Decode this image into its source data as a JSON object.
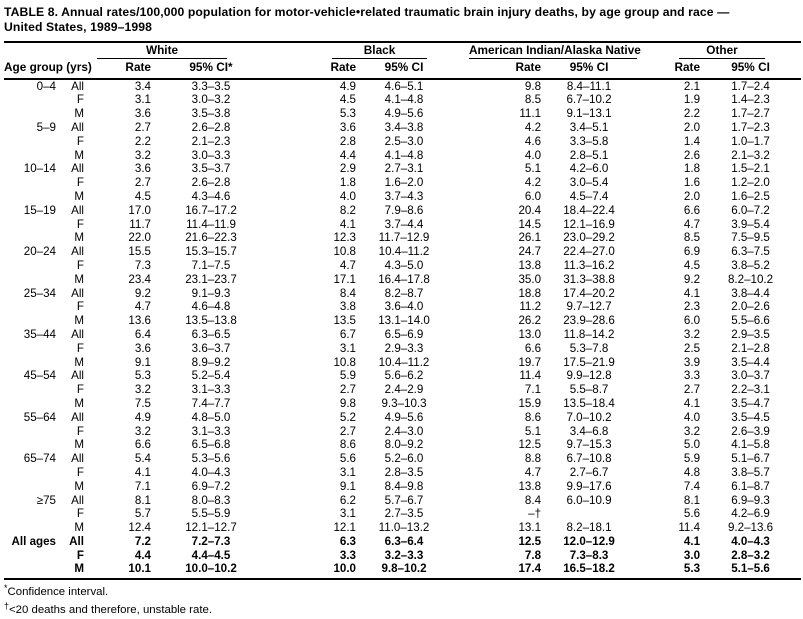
{
  "title": "TABLE 8. Annual rates/100,000 population for motor-vehicle•related traumatic brain injury deaths, by age group and race —\nUnited States, 1989–1998",
  "header": {
    "age_group_label": "Age group (yrs)",
    "groups": [
      {
        "name": "White",
        "rate_label": "Rate",
        "ci_label": "95% CI*"
      },
      {
        "name": "Black",
        "rate_label": "Rate",
        "ci_label": "95% CI"
      },
      {
        "name": "American Indian/Alaska Native",
        "rate_label": "Rate",
        "ci_label": "95% CI"
      },
      {
        "name": "Other",
        "rate_label": "Rate",
        "ci_label": "95% CI"
      }
    ]
  },
  "rows": [
    {
      "age": "0–4",
      "sex": "All",
      "bold": false,
      "w_rate": "3.4",
      "w_ci": "3.3–3.5",
      "b_rate": "4.9",
      "b_ci": "4.6–5.1",
      "ai_rate": "9.8",
      "ai_ci": "8.4–11.1",
      "o_rate": "2.1",
      "o_ci": "1.7–2.4"
    },
    {
      "age": "",
      "sex": "F",
      "bold": false,
      "w_rate": "3.1",
      "w_ci": "3.0–3.2",
      "b_rate": "4.5",
      "b_ci": "4.1–4.8",
      "ai_rate": "8.5",
      "ai_ci": "6.7–10.2",
      "o_rate": "1.9",
      "o_ci": "1.4–2.3"
    },
    {
      "age": "",
      "sex": "M",
      "bold": false,
      "w_rate": "3.6",
      "w_ci": "3.5–3.8",
      "b_rate": "5.3",
      "b_ci": "4.9–5.6",
      "ai_rate": "11.1",
      "ai_ci": "9.1–13.1",
      "o_rate": "2.2",
      "o_ci": "1.7–2.7"
    },
    {
      "age": "5–9",
      "sex": "All",
      "bold": false,
      "w_rate": "2.7",
      "w_ci": "2.6–2.8",
      "b_rate": "3.6",
      "b_ci": "3.4–3.8",
      "ai_rate": "4.2",
      "ai_ci": "3.4–5.1",
      "o_rate": "2.0",
      "o_ci": "1.7–2.3"
    },
    {
      "age": "",
      "sex": "F",
      "bold": false,
      "w_rate": "2.2",
      "w_ci": "2.1–2.3",
      "b_rate": "2.8",
      "b_ci": "2.5–3.0",
      "ai_rate": "4.6",
      "ai_ci": "3.3–5.8",
      "o_rate": "1.4",
      "o_ci": "1.0–1.7"
    },
    {
      "age": "",
      "sex": "M",
      "bold": false,
      "w_rate": "3.2",
      "w_ci": "3.0–3.3",
      "b_rate": "4.4",
      "b_ci": "4.1–4.8",
      "ai_rate": "4.0",
      "ai_ci": "2.8–5.1",
      "o_rate": "2.6",
      "o_ci": "2.1–3.2"
    },
    {
      "age": "10–14",
      "sex": "All",
      "bold": false,
      "w_rate": "3.6",
      "w_ci": "3.5–3.7",
      "b_rate": "2.9",
      "b_ci": "2.7–3.1",
      "ai_rate": "5.1",
      "ai_ci": "4.2–6.0",
      "o_rate": "1.8",
      "o_ci": "1.5–2.1"
    },
    {
      "age": "",
      "sex": "F",
      "bold": false,
      "w_rate": "2.7",
      "w_ci": "2.6–2.8",
      "b_rate": "1.8",
      "b_ci": "1.6–2.0",
      "ai_rate": "4.2",
      "ai_ci": "3.0–5.4",
      "o_rate": "1.6",
      "o_ci": "1.2–2.0"
    },
    {
      "age": "",
      "sex": "M",
      "bold": false,
      "w_rate": "4.5",
      "w_ci": "4.3–4.6",
      "b_rate": "4.0",
      "b_ci": "3.7–4.3",
      "ai_rate": "6.0",
      "ai_ci": "4.5–7.4",
      "o_rate": "2.0",
      "o_ci": "1.6–2.5"
    },
    {
      "age": "15–19",
      "sex": "All",
      "bold": false,
      "w_rate": "17.0",
      "w_ci": "16.7–17.2",
      "b_rate": "8.2",
      "b_ci": "7.9–8.6",
      "ai_rate": "20.4",
      "ai_ci": "18.4–22.4",
      "o_rate": "6.6",
      "o_ci": "6.0–7.2"
    },
    {
      "age": "",
      "sex": "F",
      "bold": false,
      "w_rate": "11.7",
      "w_ci": "11.4–11.9",
      "b_rate": "4.1",
      "b_ci": "3.7–4.4",
      "ai_rate": "14.5",
      "ai_ci": "12.1–16.9",
      "o_rate": "4.7",
      "o_ci": "3.9–5.4"
    },
    {
      "age": "",
      "sex": "M",
      "bold": false,
      "w_rate": "22.0",
      "w_ci": "21.6–22.3",
      "b_rate": "12.3",
      "b_ci": "11.7–12.9",
      "ai_rate": "26.1",
      "ai_ci": "23.0–29.2",
      "o_rate": "8.5",
      "o_ci": "7.5–9.5"
    },
    {
      "age": "20–24",
      "sex": "All",
      "bold": false,
      "w_rate": "15.5",
      "w_ci": "15.3–15.7",
      "b_rate": "10.8",
      "b_ci": "10.4–11.2",
      "ai_rate": "24.7",
      "ai_ci": "22.4–27.0",
      "o_rate": "6.9",
      "o_ci": "6.3–7.5"
    },
    {
      "age": "",
      "sex": "F",
      "bold": false,
      "w_rate": "7.3",
      "w_ci": "7.1–7.5",
      "b_rate": "4.7",
      "b_ci": "4.3–5.0",
      "ai_rate": "13.8",
      "ai_ci": "11.3–16.2",
      "o_rate": "4.5",
      "o_ci": "3.8–5.2"
    },
    {
      "age": "",
      "sex": "M",
      "bold": false,
      "w_rate": "23.4",
      "w_ci": "23.1–23.7",
      "b_rate": "17.1",
      "b_ci": "16.4–17.8",
      "ai_rate": "35.0",
      "ai_ci": "31.3–38.8",
      "o_rate": "9.2",
      "o_ci": "8.2–10.2"
    },
    {
      "age": "25–34",
      "sex": "All",
      "bold": false,
      "w_rate": "9.2",
      "w_ci": "9.1–9.3",
      "b_rate": "8.4",
      "b_ci": "8.2–8.7",
      "ai_rate": "18.8",
      "ai_ci": "17.4–20.2",
      "o_rate": "4.1",
      "o_ci": "3.8–4.4"
    },
    {
      "age": "",
      "sex": "F",
      "bold": false,
      "w_rate": "4.7",
      "w_ci": "4.6–4.8",
      "b_rate": "3.8",
      "b_ci": "3.6–4.0",
      "ai_rate": "11.2",
      "ai_ci": "9.7–12.7",
      "o_rate": "2.3",
      "o_ci": "2.0–2.6"
    },
    {
      "age": "",
      "sex": "M",
      "bold": false,
      "w_rate": "13.6",
      "w_ci": "13.5–13.8",
      "b_rate": "13.5",
      "b_ci": "13.1–14.0",
      "ai_rate": "26.2",
      "ai_ci": "23.9–28.6",
      "o_rate": "6.0",
      "o_ci": "5.5–6.6"
    },
    {
      "age": "35–44",
      "sex": "All",
      "bold": false,
      "w_rate": "6.4",
      "w_ci": "6.3–6.5",
      "b_rate": "6.7",
      "b_ci": "6.5–6.9",
      "ai_rate": "13.0",
      "ai_ci": "11.8–14.2",
      "o_rate": "3.2",
      "o_ci": "2.9–3.5"
    },
    {
      "age": "",
      "sex": "F",
      "bold": false,
      "w_rate": "3.6",
      "w_ci": "3.6–3.7",
      "b_rate": "3.1",
      "b_ci": "2.9–3.3",
      "ai_rate": "6.6",
      "ai_ci": "5.3–7.8",
      "o_rate": "2.5",
      "o_ci": "2.1–2.8"
    },
    {
      "age": "",
      "sex": "M",
      "bold": false,
      "w_rate": "9.1",
      "w_ci": "8.9–9.2",
      "b_rate": "10.8",
      "b_ci": "10.4–11.2",
      "ai_rate": "19.7",
      "ai_ci": "17.5–21.9",
      "o_rate": "3.9",
      "o_ci": "3.5–4.4"
    },
    {
      "age": "45–54",
      "sex": "All",
      "bold": false,
      "w_rate": "5.3",
      "w_ci": "5.2–5.4",
      "b_rate": "5.9",
      "b_ci": "5.6–6.2",
      "ai_rate": "11.4",
      "ai_ci": "9.9–12.8",
      "o_rate": "3.3",
      "o_ci": "3.0–3.7"
    },
    {
      "age": "",
      "sex": "F",
      "bold": false,
      "w_rate": "3.2",
      "w_ci": "3.1–3.3",
      "b_rate": "2.7",
      "b_ci": "2.4–2.9",
      "ai_rate": "7.1",
      "ai_ci": "5.5–8.7",
      "o_rate": "2.7",
      "o_ci": "2.2–3.1"
    },
    {
      "age": "",
      "sex": "M",
      "bold": false,
      "w_rate": "7.5",
      "w_ci": "7.4–7.7",
      "b_rate": "9.8",
      "b_ci": "9.3–10.3",
      "ai_rate": "15.9",
      "ai_ci": "13.5–18.4",
      "o_rate": "4.1",
      "o_ci": "3.5–4.7"
    },
    {
      "age": "55–64",
      "sex": "All",
      "bold": false,
      "w_rate": "4.9",
      "w_ci": "4.8–5.0",
      "b_rate": "5.2",
      "b_ci": "4.9–5.6",
      "ai_rate": "8.6",
      "ai_ci": "7.0–10.2",
      "o_rate": "4.0",
      "o_ci": "3.5–4.5"
    },
    {
      "age": "",
      "sex": "F",
      "bold": false,
      "w_rate": "3.2",
      "w_ci": "3.1–3.3",
      "b_rate": "2.7",
      "b_ci": "2.4–3.0",
      "ai_rate": "5.1",
      "ai_ci": "3.4–6.8",
      "o_rate": "3.2",
      "o_ci": "2.6–3.9"
    },
    {
      "age": "",
      "sex": "M",
      "bold": false,
      "w_rate": "6.6",
      "w_ci": "6.5–6.8",
      "b_rate": "8.6",
      "b_ci": "8.0–9.2",
      "ai_rate": "12.5",
      "ai_ci": "9.7–15.3",
      "o_rate": "5.0",
      "o_ci": "4.1–5.8"
    },
    {
      "age": "65–74",
      "sex": "All",
      "bold": false,
      "w_rate": "5.4",
      "w_ci": "5.3–5.6",
      "b_rate": "5.6",
      "b_ci": "5.2–6.0",
      "ai_rate": "8.8",
      "ai_ci": "6.7–10.8",
      "o_rate": "5.9",
      "o_ci": "5.1–6.7"
    },
    {
      "age": "",
      "sex": "F",
      "bold": false,
      "w_rate": "4.1",
      "w_ci": "4.0–4.3",
      "b_rate": "3.1",
      "b_ci": "2.8–3.5",
      "ai_rate": "4.7",
      "ai_ci": "2.7–6.7",
      "o_rate": "4.8",
      "o_ci": "3.8–5.7"
    },
    {
      "age": "",
      "sex": "M",
      "bold": false,
      "w_rate": "7.1",
      "w_ci": "6.9–7.2",
      "b_rate": "9.1",
      "b_ci": "8.4–9.8",
      "ai_rate": "13.8",
      "ai_ci": "9.9–17.6",
      "o_rate": "7.4",
      "o_ci": "6.1–8.7"
    },
    {
      "age": "≥75",
      "sex": "All",
      "bold": false,
      "w_rate": "8.1",
      "w_ci": "8.0–8.3",
      "b_rate": "6.2",
      "b_ci": "5.7–6.7",
      "ai_rate": "8.4",
      "ai_ci": "6.0–10.9",
      "o_rate": "8.1",
      "o_ci": "6.9–9.3"
    },
    {
      "age": "",
      "sex": "F",
      "bold": false,
      "w_rate": "5.7",
      "w_ci": "5.5–5.9",
      "b_rate": "3.1",
      "b_ci": "2.7–3.5",
      "ai_rate": "–†",
      "ai_ci": "",
      "o_rate": "5.6",
      "o_ci": "4.2–6.9"
    },
    {
      "age": "",
      "sex": "M",
      "bold": false,
      "w_rate": "12.4",
      "w_ci": "12.1–12.7",
      "b_rate": "12.1",
      "b_ci": "11.0–13.2",
      "ai_rate": "13.1",
      "ai_ci": "8.2–18.1",
      "o_rate": "11.4",
      "o_ci": "9.2–13.6"
    },
    {
      "age": "All ages",
      "sex": "All",
      "bold": true,
      "w_rate": "7.2",
      "w_ci": "7.2–7.3",
      "b_rate": "6.3",
      "b_ci": "6.3–6.4",
      "ai_rate": "12.5",
      "ai_ci": "12.0–12.9",
      "o_rate": "4.1",
      "o_ci": "4.0–4.3"
    },
    {
      "age": "",
      "sex": "F",
      "bold": true,
      "w_rate": "4.4",
      "w_ci": "4.4–4.5",
      "b_rate": "3.3",
      "b_ci": "3.2–3.3",
      "ai_rate": "7.8",
      "ai_ci": "7.3–8.3",
      "o_rate": "3.0",
      "o_ci": "2.8–3.2"
    },
    {
      "age": "",
      "sex": "M",
      "bold": true,
      "w_rate": "10.1",
      "w_ci": "10.0–10.2",
      "b_rate": "10.0",
      "b_ci": "9.8–10.2",
      "ai_rate": "17.4",
      "ai_ci": "16.5–18.2",
      "o_rate": "5.3",
      "o_ci": "5.1–5.6"
    }
  ],
  "footnotes": [
    {
      "marker": "*",
      "text": "Confidence interval."
    },
    {
      "marker": "†",
      "text": "<20 deaths and therefore, unstable rate."
    }
  ]
}
